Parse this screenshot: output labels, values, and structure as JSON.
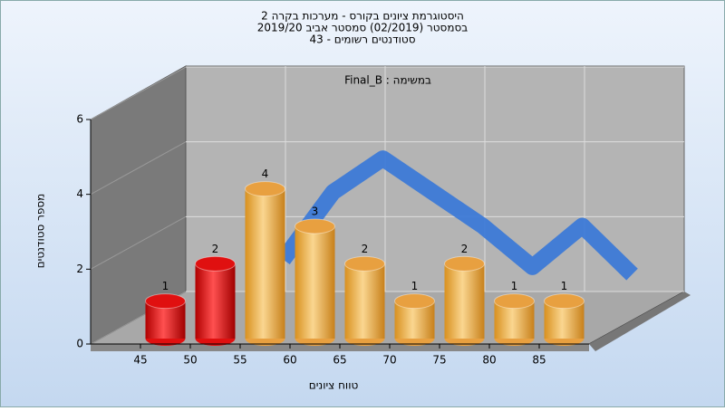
{
  "chart_data": {
    "type": "bar",
    "title": "היסטוגרמת ציונים בקורס - מערכות בקרה 2",
    "subtitle": [
      "בסמסטר  (02/2019)  סמסטר אביב 2019/20",
      "סטודנטים רשומים - 43"
    ],
    "annotation": "Final_B : במשימה",
    "x_label": "טווח ציונים",
    "y_label": "מספר סטודנטים",
    "categories": [
      "45",
      "50",
      "55",
      "60",
      "65",
      "70",
      "75",
      "80",
      "85"
    ],
    "values": [
      1,
      2,
      4,
      3,
      2,
      1,
      2,
      1,
      1
    ],
    "colors": [
      "#e01010",
      "#e01010",
      "#e8a040",
      "#e8a040",
      "#e8a040",
      "#e8a040",
      "#e8a040",
      "#e8a040",
      "#e8a040"
    ],
    "trend": {
      "color": "#3a78d8",
      "values": [
        null,
        1.0,
        2.8,
        3.7,
        2.8,
        1.9,
        0.8,
        1.9,
        0.6
      ]
    },
    "ylim": [
      0,
      6
    ],
    "yticks": [
      0,
      2,
      4,
      6
    ],
    "grid": true
  }
}
